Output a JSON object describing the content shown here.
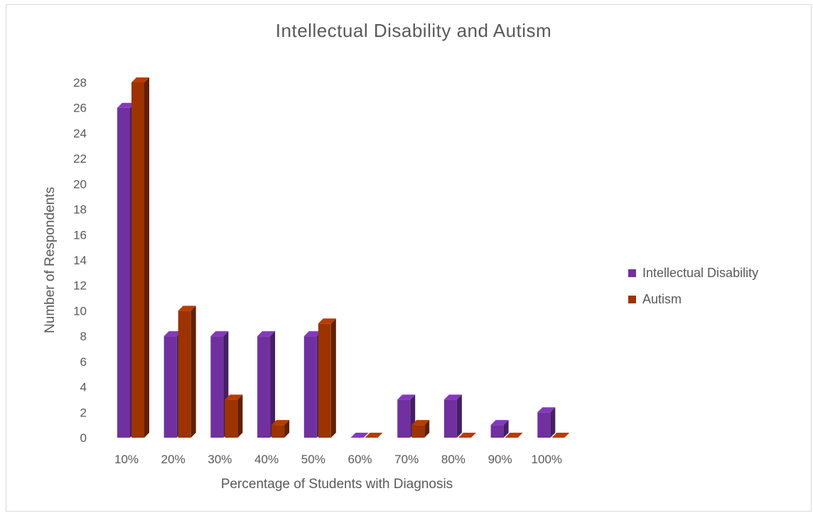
{
  "chart_data": {
    "type": "bar",
    "title": "Intellectual Disability and Autism",
    "xlabel": "Percentage of Students with Diagnosis",
    "ylabel": "Number of Respondents",
    "categories": [
      "10%",
      "20%",
      "30%",
      "40%",
      "50%",
      "60%",
      "70%",
      "80%",
      "90%",
      "100%"
    ],
    "series": [
      {
        "name": "Intellectual Disability",
        "color": "#7030a0",
        "values": [
          26,
          8,
          8,
          8,
          8,
          0,
          3,
          3,
          1,
          2
        ]
      },
      {
        "name": "Autism",
        "color": "#9c3300",
        "values": [
          28,
          10,
          3,
          1,
          9,
          0,
          1,
          0,
          0,
          0
        ]
      }
    ],
    "ylim": [
      0,
      28
    ],
    "yticks": [
      0,
      2,
      4,
      6,
      8,
      10,
      12,
      14,
      16,
      18,
      20,
      22,
      24,
      26,
      28
    ],
    "legend_position": "right",
    "grid": false,
    "style": "3d-column"
  }
}
